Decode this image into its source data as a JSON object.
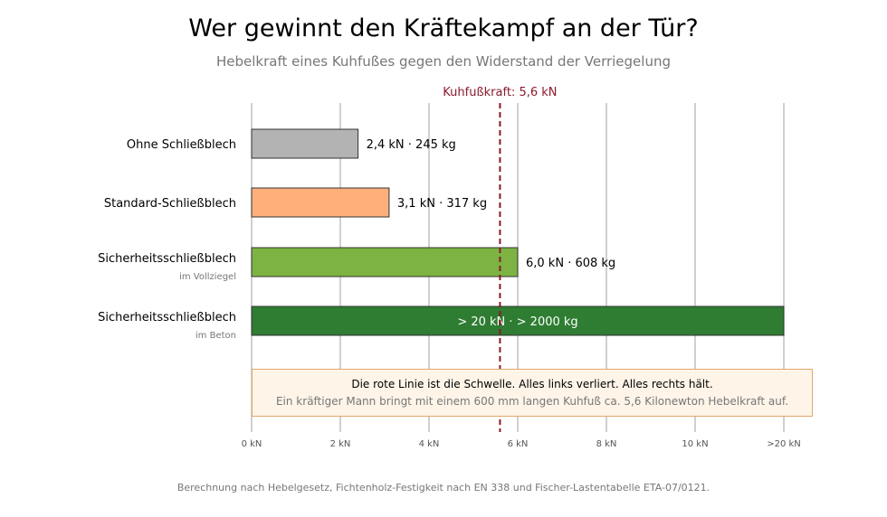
{
  "title": "Wer gewinnt den Kräftekampf an der Tür?",
  "subtitle": "Hebelkraft eines Kuhfußes gegen den Widerstand der Verriegelung",
  "footer": "Berechnung nach Hebelgesetz, Fichtenholz-Festigkeit nach EN 338 und Fischer-Lastentabelle ETA-07/0121.",
  "note": {
    "line1": "Die rote Linie ist die Schwelle. Alles links verliert. Alles rechts hält.",
    "line2": "Ein kräftiger Mann bringt mit einem 600 mm langen Kuhfuß ca. 5,6 Kilonewton Hebelkraft auf."
  },
  "colors": {
    "bar1": "#b3b3b3",
    "bar2": "#ffb07a",
    "bar3": "#7cb342",
    "bar4": "#2e7d32",
    "threshold": "#8b1a2b"
  },
  "chart_data": {
    "type": "bar",
    "orientation": "horizontal",
    "categories": [
      {
        "label": "Ohne Schließblech",
        "sublabel": ""
      },
      {
        "label": "Standard-Schließblech",
        "sublabel": ""
      },
      {
        "label": "Sicherheitsschließblech",
        "sublabel": "im Vollziegel"
      },
      {
        "label": "Sicherheitsschließblech",
        "sublabel": "im Beton"
      }
    ],
    "values": [
      2.4,
      3.1,
      6.0,
      20
    ],
    "value_labels": [
      "2,4 kN · 245 kg",
      "3,1 kN · 317 kg",
      "6,0 kN · 608 kg",
      "> 20 kN · > 2000 kg"
    ],
    "xlim": [
      0,
      20
    ],
    "x_ticks": [
      {
        "value": 0,
        "label": "0 kN"
      },
      {
        "value": 2,
        "label": "2 kN"
      },
      {
        "value": 4,
        "label": "4 kN"
      },
      {
        "value": 6,
        "label": "6 kN"
      },
      {
        "value": 8,
        "label": "8 kN"
      },
      {
        "value": 10,
        "label": "10 kN"
      },
      {
        "value": 20,
        "label": ">20 kN"
      }
    ],
    "threshold": {
      "value": 5.6,
      "label": "Kuhfußkraft: 5,6 kN"
    },
    "grid": true
  }
}
